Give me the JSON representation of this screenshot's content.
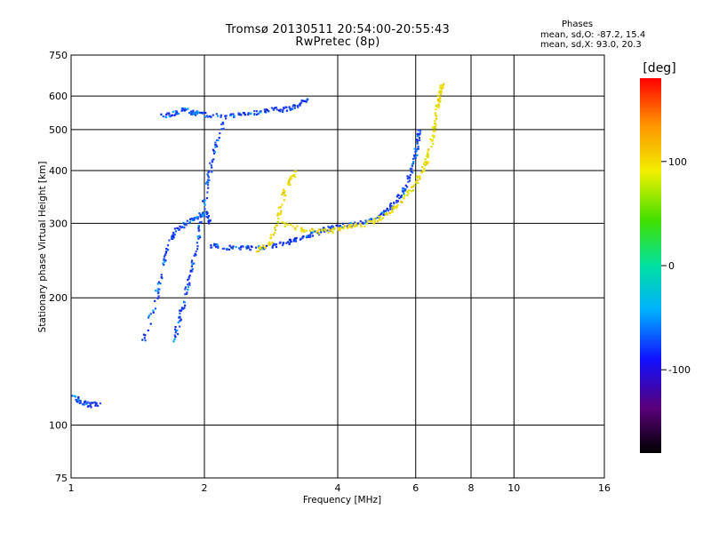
{
  "title_line1": "Tromsø 20130511 20:54:00-20:55:43",
  "title_line2": "RwPretec (8p)",
  "stats": {
    "header": "Phases",
    "line_o": "mean, sd,O: -87.2, 15.4",
    "line_x": "mean, sd,X:  93.0, 20.3"
  },
  "colorbar": {
    "unit": "[deg]",
    "min": -180,
    "max": 180,
    "ticks": [
      {
        "value": 100,
        "label": "100"
      },
      {
        "value": 0,
        "label": "0"
      },
      {
        "value": -100,
        "label": "-100"
      }
    ]
  },
  "chart_data": {
    "type": "scatter",
    "xlabel": "Frequency [MHz]",
    "ylabel": "Stationary phase Virtual Height [km]",
    "xscale": "log",
    "yscale": "log",
    "xlim": [
      1,
      16
    ],
    "ylim": [
      75,
      750
    ],
    "xticks": [
      {
        "value": 1,
        "label": "1"
      },
      {
        "value": 2,
        "label": "2"
      },
      {
        "value": 4,
        "label": "4"
      },
      {
        "value": 6,
        "label": "6"
      },
      {
        "value": 8,
        "label": "8"
      },
      {
        "value": 10,
        "label": "10"
      },
      {
        "value": 16,
        "label": "16"
      }
    ],
    "xgrid": [
      2,
      4,
      6,
      8,
      10
    ],
    "yticks": [
      {
        "value": 75,
        "label": "75"
      },
      {
        "value": 100,
        "label": "100"
      },
      {
        "value": 200,
        "label": "200"
      },
      {
        "value": 300,
        "label": "300"
      },
      {
        "value": 400,
        "label": "400"
      },
      {
        "value": 500,
        "label": "500"
      },
      {
        "value": 600,
        "label": "600"
      },
      {
        "value": 750,
        "label": "750"
      }
    ],
    "ygrid": [
      100,
      200,
      300,
      400,
      500,
      600
    ],
    "grid": true,
    "note": "point coordinates are representative samples of the dense echo traces",
    "traces": [
      {
        "component": "O",
        "phase": -100,
        "points": [
          [
            2.05,
            268
          ],
          [
            2.2,
            264
          ],
          [
            2.4,
            263
          ],
          [
            2.6,
            264
          ],
          [
            2.8,
            266
          ],
          [
            3.0,
            270
          ],
          [
            3.2,
            275
          ],
          [
            3.4,
            281
          ],
          [
            3.6,
            287
          ],
          [
            3.8,
            293
          ],
          [
            4.0,
            297
          ],
          [
            4.4,
            300
          ],
          [
            4.8,
            308
          ],
          [
            5.1,
            320
          ],
          [
            5.4,
            340
          ],
          [
            5.6,
            360
          ],
          [
            5.8,
            390
          ],
          [
            5.95,
            430
          ],
          [
            6.05,
            470
          ],
          [
            6.1,
            500
          ]
        ]
      },
      {
        "component": "X",
        "phase": 95,
        "points": [
          [
            3.0,
            300
          ],
          [
            3.3,
            292
          ],
          [
            3.6,
            288
          ],
          [
            3.9,
            290
          ],
          [
            4.2,
            296
          ],
          [
            4.6,
            300
          ],
          [
            5.0,
            310
          ],
          [
            5.4,
            330
          ],
          [
            5.8,
            360
          ],
          [
            6.1,
            390
          ],
          [
            6.3,
            420
          ],
          [
            6.5,
            470
          ],
          [
            6.6,
            520
          ],
          [
            6.7,
            570
          ],
          [
            6.8,
            620
          ],
          [
            6.85,
            640
          ]
        ]
      },
      {
        "component": "O",
        "phase": -100,
        "points": [
          [
            1.45,
            160
          ],
          [
            1.55,
            200
          ],
          [
            1.6,
            240
          ],
          [
            1.65,
            270
          ],
          [
            1.72,
            290
          ],
          [
            1.8,
            300
          ],
          [
            1.9,
            310
          ],
          [
            2.0,
            320
          ],
          [
            2.05,
            300
          ]
        ]
      },
      {
        "component": "O",
        "phase": -100,
        "points": [
          [
            1.7,
            160
          ],
          [
            1.75,
            180
          ],
          [
            1.8,
            200
          ],
          [
            1.85,
            230
          ],
          [
            1.9,
            260
          ],
          [
            1.95,
            300
          ],
          [
            2.0,
            350
          ],
          [
            2.05,
            400
          ],
          [
            2.1,
            450
          ],
          [
            2.2,
            520
          ]
        ]
      },
      {
        "component": "O",
        "phase": -100,
        "points": [
          [
            1.6,
            540
          ],
          [
            1.7,
            550
          ],
          [
            1.8,
            560
          ],
          [
            1.9,
            550
          ],
          [
            2.0,
            545
          ],
          [
            2.2,
            540
          ],
          [
            2.4,
            545
          ],
          [
            2.6,
            550
          ],
          [
            2.8,
            560
          ],
          [
            3.0,
            560
          ],
          [
            3.2,
            570
          ],
          [
            3.4,
            590
          ]
        ]
      },
      {
        "component": "X",
        "phase": 95,
        "points": [
          [
            2.6,
            260
          ],
          [
            2.8,
            270
          ],
          [
            2.9,
            300
          ],
          [
            3.0,
            350
          ],
          [
            3.1,
            380
          ],
          [
            3.2,
            400
          ]
        ]
      },
      {
        "component": "O",
        "phase": -100,
        "points": [
          [
            1.0,
            118
          ],
          [
            1.05,
            114
          ],
          [
            1.1,
            112
          ],
          [
            1.15,
            113
          ]
        ]
      }
    ]
  }
}
